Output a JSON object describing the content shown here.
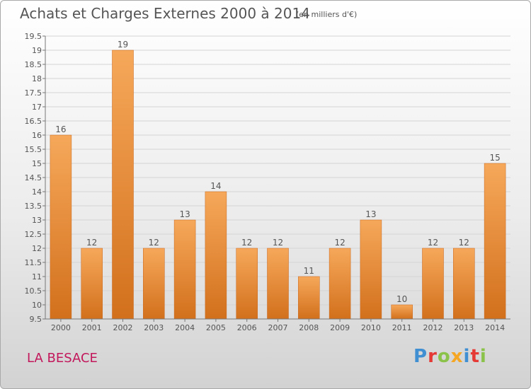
{
  "header": {
    "title": "Achats et Charges Externes 2000 à 2014",
    "subtitle": "(en milliers d'€)"
  },
  "footer": {
    "place": "LA BESACE",
    "logo_letters": [
      "P",
      "r",
      "o",
      "x",
      "i",
      "t",
      "i"
    ],
    "logo_colors": [
      "#3f8fd2",
      "#e53935",
      "#8bc34a",
      "#f5a623",
      "#3f8fd2",
      "#e53935",
      "#8bc34a"
    ]
  },
  "colors": {
    "bar_light": "#f6a85a",
    "bar_dark": "#d2701c",
    "gridline": "#d4d4d4",
    "axis": "#777777",
    "text": "#555555"
  },
  "chart_data": {
    "type": "bar",
    "title": "Achats et Charges Externes 2000 à 2014",
    "subtitle": "(en milliers d'€)",
    "xlabel": "",
    "ylabel": "",
    "categories": [
      "2000",
      "2001",
      "2002",
      "2003",
      "2004",
      "2005",
      "2006",
      "2007",
      "2008",
      "2009",
      "2010",
      "2011",
      "2012",
      "2013",
      "2014"
    ],
    "values": [
      16,
      12,
      19,
      12,
      13,
      14,
      12,
      12,
      11,
      12,
      13,
      10,
      12,
      12,
      15
    ],
    "data_labels": [
      "16",
      "12",
      "19",
      "12",
      "13",
      "14",
      "12",
      "12",
      "11",
      "12",
      "13",
      "10",
      "12",
      "12",
      "15"
    ],
    "ylim": [
      9.5,
      19.5
    ],
    "yticks": [
      9.5,
      10,
      10.5,
      11,
      11.5,
      12,
      12.5,
      13,
      13.5,
      14,
      14.5,
      15,
      15.5,
      16,
      16.5,
      17,
      17.5,
      18,
      18.5,
      19,
      19.5
    ],
    "ytick_labels": [
      "9.5",
      "10",
      "10.5",
      "11",
      "11.5",
      "12",
      "12.5",
      "13",
      "13.5",
      "14",
      "14.5",
      "15",
      "15.5",
      "16",
      "16.5",
      "17",
      "17.5",
      "18",
      "18.5",
      "19",
      "19.5"
    ],
    "grid": true,
    "legend": "none"
  }
}
